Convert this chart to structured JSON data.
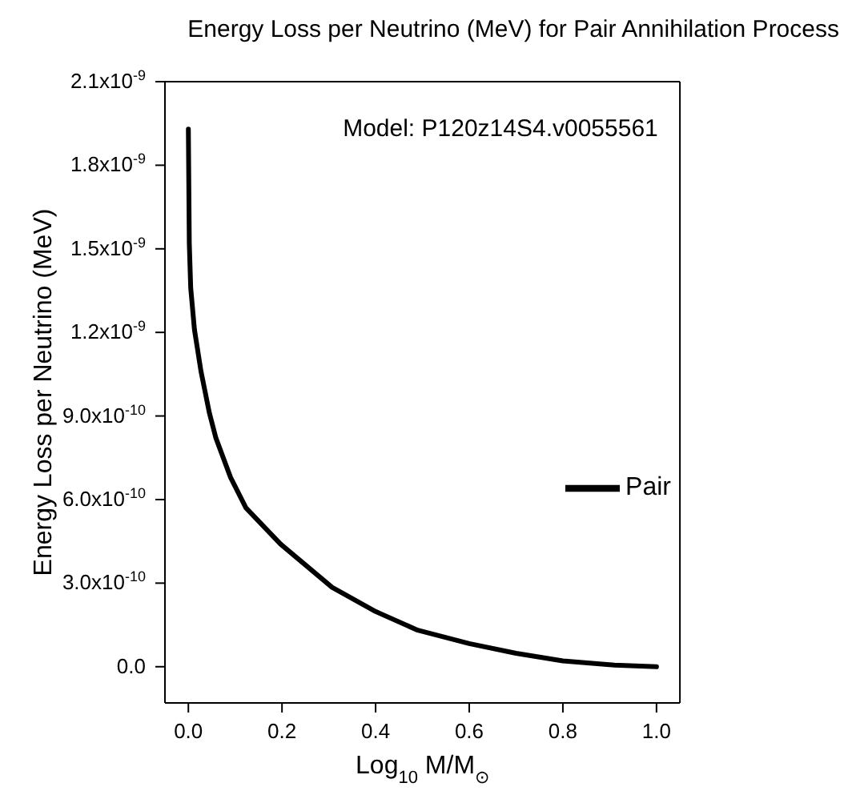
{
  "chart_data": {
    "type": "line",
    "title": "Energy Loss per Neutrino (MeV) for Pair Annihilation Process",
    "xlabel": "Log$_{10}$ M/M$_{⊙}$",
    "ylabel": "Energy Loss per Neutrino (MeV)",
    "annotations": [
      "Model: P120z14S4.v0055561"
    ],
    "x": [
      0,
      0.002,
      0.005,
      0.013,
      0.027,
      0.045,
      0.059,
      0.09,
      0.123,
      0.197,
      0.307,
      0.4,
      0.49,
      0.6,
      0.7,
      0.8,
      0.91,
      1.0
    ],
    "series": [
      {
        "name": "Pair",
        "color": "#000000",
        "values": [
          1.93e-09,
          1.52e-09,
          1.36e-09,
          1.21e-09,
          1.06e-09,
          9.1e-10,
          8.2e-10,
          6.8e-10,
          5.7e-10,
          4.4e-10,
          2.85e-10,
          1.98e-10,
          1.31e-10,
          8.3e-11,
          4.8e-11,
          2.1e-11,
          6e-12,
          0
        ]
      }
    ],
    "xlim": [
      -0.05,
      1.05
    ],
    "xticks": [
      {
        "value": 0,
        "label": "0.0"
      },
      {
        "value": 0.2,
        "label": "0.2"
      },
      {
        "value": 0.4,
        "label": "0.4"
      },
      {
        "value": 0.6,
        "label": "0.6"
      },
      {
        "value": 0.8,
        "label": "0.8"
      },
      {
        "value": 1,
        "label": "1.0"
      }
    ],
    "ylim": [
      -1.3e-10,
      2.1e-09
    ],
    "yticks": [
      {
        "value": 0,
        "label": "0.0"
      },
      {
        "value": 3e-10,
        "label": "3.0x10$^{-10}$"
      },
      {
        "value": 6e-10,
        "label": "6.0x10$^{-10}$"
      },
      {
        "value": 9e-10,
        "label": "9.0x10$^{-10}$"
      },
      {
        "value": 1.2e-09,
        "label": "1.2x10$^{-9}$"
      },
      {
        "value": 1.5e-09,
        "label": "1.5x10$^{-9}$"
      },
      {
        "value": 1.8e-09,
        "label": "1.8x10$^{-9}$"
      },
      {
        "value": 2.1e-09,
        "label": "2.1x10$^{-9}$"
      }
    ],
    "legend": "right",
    "grid": false,
    "marker": "none",
    "line_style": "solid"
  }
}
